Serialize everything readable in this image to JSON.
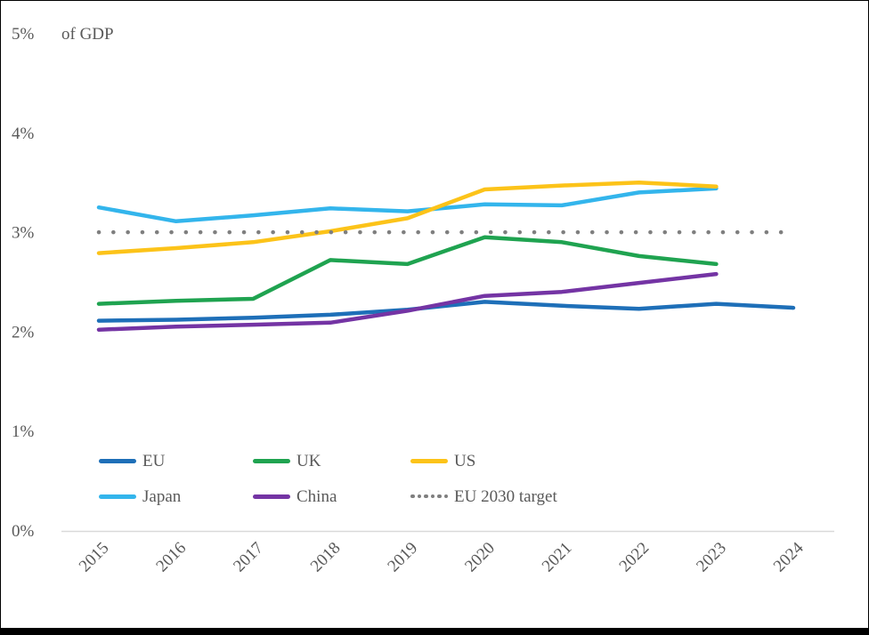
{
  "page": {
    "background": "#ffffff",
    "text_color": "#595959",
    "axis_line_color": "#D9D9D9",
    "bottom_bar_color": "#000000"
  },
  "chart_data": {
    "type": "line",
    "title": "of GDP",
    "xlabel": "",
    "ylabel": "of GDP",
    "ylim": [
      0,
      5
    ],
    "grid": "none",
    "yticks": [
      "0%",
      "1%",
      "2%",
      "3%",
      "4%",
      "5%"
    ],
    "categories": [
      "2015",
      "2016",
      "2017",
      "2018",
      "2019",
      "2020",
      "2021",
      "2022",
      "2023",
      "2024"
    ],
    "series": [
      {
        "name": "Japan",
        "color": "#33B5EC",
        "style": "solid",
        "values": [
          3.25,
          3.11,
          3.17,
          3.24,
          3.21,
          3.28,
          3.27,
          3.4,
          3.44
        ]
      },
      {
        "name": "US",
        "color": "#FCC319",
        "style": "solid",
        "values": [
          2.79,
          2.84,
          2.9,
          3.01,
          3.14,
          3.43,
          3.47,
          3.5,
          3.46
        ]
      },
      {
        "name": "UK",
        "color": "#1FA350",
        "style": "solid",
        "values": [
          2.28,
          2.31,
          2.33,
          2.72,
          2.68,
          2.95,
          2.9,
          2.76,
          2.68
        ]
      },
      {
        "name": "EU",
        "color": "#1E6FB8",
        "style": "solid",
        "values": [
          2.11,
          2.12,
          2.14,
          2.17,
          2.22,
          2.3,
          2.26,
          2.23,
          2.28,
          2.24
        ]
      },
      {
        "name": "China",
        "color": "#7434A4",
        "style": "solid",
        "values": [
          2.02,
          2.05,
          2.07,
          2.09,
          2.21,
          2.36,
          2.4,
          2.49,
          2.58
        ]
      },
      {
        "name": "EU 2030 target",
        "color": "#7F7F7F",
        "style": "dotted",
        "values": [
          3.0,
          3.0,
          3.0,
          3.0,
          3.0,
          3.0,
          3.0,
          3.0,
          3.0,
          3.0
        ]
      }
    ],
    "legend": {
      "position": "inside-bottom",
      "rows": [
        [
          "EU",
          "UK",
          "US"
        ],
        [
          "Japan",
          "China",
          "EU 2030 target"
        ]
      ]
    }
  }
}
